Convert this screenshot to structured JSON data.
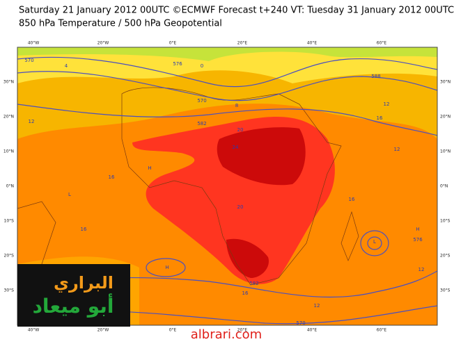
{
  "header": {
    "lines": [
      "Saturday 21 January 2012 00UTC ©ECMWF Forecast t+240 VT: Tuesday 31 January 2012 00UTC",
      "850 hPa Temperature / 500 hPa Geopotential"
    ]
  },
  "axes": {
    "lon_labels": [
      "40°W",
      "20°W",
      "0°E",
      "20°E",
      "40°E",
      "60°E"
    ],
    "lat_labels": [
      "30°N",
      "20°N",
      "10°N",
      "0°N",
      "10°S",
      "20°S",
      "30°S"
    ]
  },
  "contour_labels": [
    "570",
    "0",
    "576",
    "588",
    "570",
    "582",
    "4",
    "8",
    "12",
    "16",
    "20",
    "24",
    "16",
    "12",
    "16",
    "20",
    "16",
    "12",
    "576",
    "570",
    "582",
    "12",
    "16",
    "12",
    "L",
    "H",
    "H",
    "L",
    "H"
  ],
  "logo": {
    "top": "البراري",
    "bottom": "أبو ميعاد"
  },
  "watermark": "albrari.com"
}
